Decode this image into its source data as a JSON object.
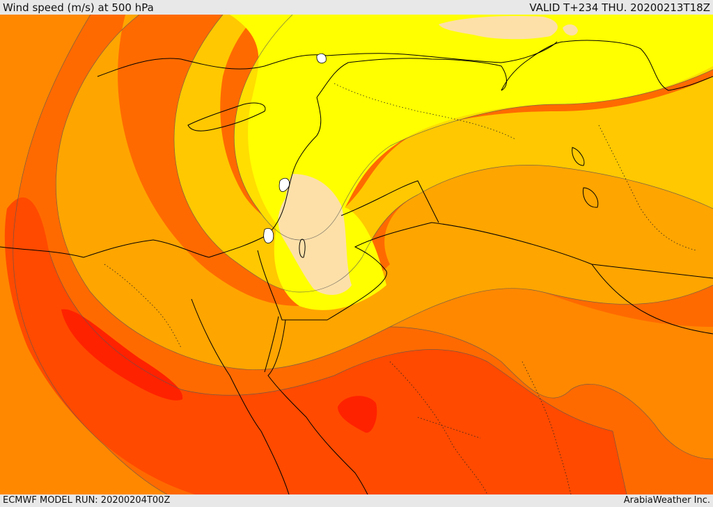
{
  "header": {
    "title": "Wind speed (m/s) at 500 hPa",
    "valid_time": "VALID T+234 THU. 20200213T18Z"
  },
  "footer": {
    "model_run": "ECMWF MODEL RUN: 20200204T00Z",
    "credit": "ArabiaWeather Inc."
  },
  "colors": {
    "band_lt_10": "#fde0a8",
    "band_10_15": "#ffff00",
    "band_15_20": "#ffde00",
    "band_20_25": "#ffc800",
    "band_25_30": "#ffa500",
    "band_30_35": "#ff8800",
    "band_35_40": "#ff6a00",
    "band_40_45": "#ff4a00",
    "band_gt_45": "#ff2200",
    "coastline": "#000000",
    "contour_line": "#555555"
  }
}
